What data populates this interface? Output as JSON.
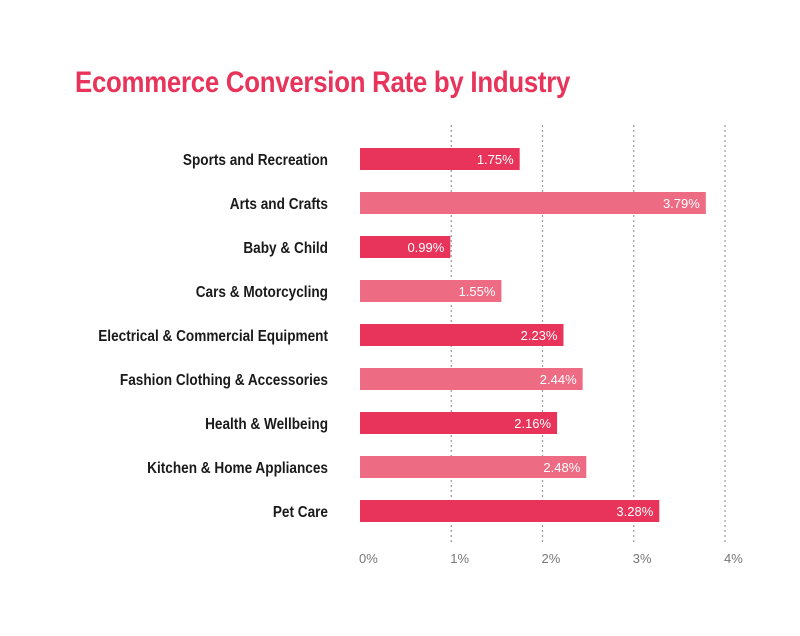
{
  "chart_data": {
    "type": "bar",
    "orientation": "horizontal",
    "title": "Ecommerce Conversion Rate by Industry",
    "xlabel": "",
    "ylabel": "",
    "categories": [
      "Sports and Recreation",
      "Arts and Crafts",
      "Baby & Child",
      "Cars & Motorcycling",
      "Electrical & Commercial Equipment",
      "Fashion Clothing & Accessories",
      "Health & Wellbeing",
      "Kitchen & Home Appliances",
      "Pet Care"
    ],
    "values": [
      1.75,
      3.79,
      0.99,
      1.55,
      2.23,
      2.44,
      2.16,
      2.48,
      3.28
    ],
    "value_labels": [
      "1.75%",
      "3.79%",
      "0.99%",
      "1.55%",
      "2.23%",
      "2.44%",
      "2.16%",
      "2.48%",
      "3.28%"
    ],
    "xlim": [
      0,
      4
    ],
    "x_ticks": [
      0,
      1,
      2,
      3,
      4
    ],
    "x_tick_labels": [
      "0%",
      "1%",
      "2%",
      "3%",
      "4%"
    ],
    "grid": "vertical dotted",
    "legend": "none",
    "colors": {
      "title": "#e8345a",
      "bar_dark": "#e8345a",
      "bar_light": "#ee6b84",
      "grid": "#999999"
    }
  }
}
